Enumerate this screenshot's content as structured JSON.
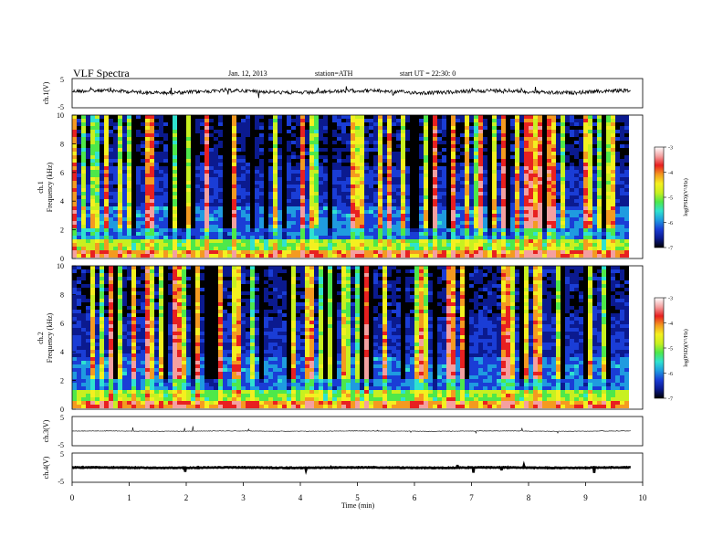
{
  "header": {
    "title": "VLF  Spectra",
    "date": "Jan. 12, 2013",
    "station": "station=ATH",
    "start": "start  UT =   22:30: 0"
  },
  "colors": {
    "colormap": [
      "#000000",
      "#0b1a8f",
      "#1a3dd6",
      "#1f9be0",
      "#2fe2d0",
      "#4ee84a",
      "#c8f020",
      "#f4f020",
      "#f49a20",
      "#e82020",
      "#f4a0a0",
      "#ffffff"
    ],
    "trace": "#000000",
    "frame": "#000000"
  },
  "chart_data": [
    {
      "type": "line",
      "panel": "ch1-waveform",
      "ylabel": "ch.1(V)",
      "ylim": [
        -5,
        5
      ],
      "yticks": [
        "5",
        "-5"
      ],
      "x_end_min": 9.8,
      "baseline": 0.5
    },
    {
      "type": "heatmap",
      "panel": "ch1-spectrogram",
      "ylabel": "Frequency (kHz)",
      "channel_label": "ch.1",
      "ylim": [
        0,
        10
      ],
      "yticks": [
        "0",
        "2",
        "4",
        "6",
        "8",
        "10"
      ],
      "colorbar": {
        "label": "log(PSD)(V²/Hz)",
        "range": [
          -7,
          -3
        ],
        "ticks": [
          "-3",
          "-4",
          "-5",
          "-6",
          "-7"
        ]
      }
    },
    {
      "type": "heatmap",
      "panel": "ch2-spectrogram",
      "ylabel": "Frequency (kHz)",
      "channel_label": "ch.2",
      "ylim": [
        0,
        10
      ],
      "yticks": [
        "0",
        "2",
        "4",
        "6",
        "8",
        "10"
      ],
      "colorbar": {
        "label": "log(PSD)(V²/Hz)",
        "range": [
          -7,
          -3
        ],
        "ticks": [
          "-3",
          "-4",
          "-5",
          "-6",
          "-7"
        ]
      }
    },
    {
      "type": "line",
      "panel": "ch3-waveform",
      "ylabel": "ch.3(V)",
      "ylim": [
        -5,
        5
      ],
      "yticks": [
        "5",
        "-5"
      ],
      "x_end_min": 9.8,
      "baseline": 0.0
    },
    {
      "type": "line",
      "panel": "ch4-waveform",
      "ylabel": "ch.4(V)",
      "ylim": [
        -5,
        5
      ],
      "yticks": [
        "5",
        "-5"
      ],
      "x_end_min": 9.8,
      "baseline": 0.0
    }
  ],
  "xaxis": {
    "label": "Time  (min)",
    "xlim": [
      0,
      10
    ],
    "ticks": [
      "0",
      "1",
      "2",
      "3",
      "4",
      "5",
      "6",
      "7",
      "8",
      "9",
      "10"
    ]
  }
}
